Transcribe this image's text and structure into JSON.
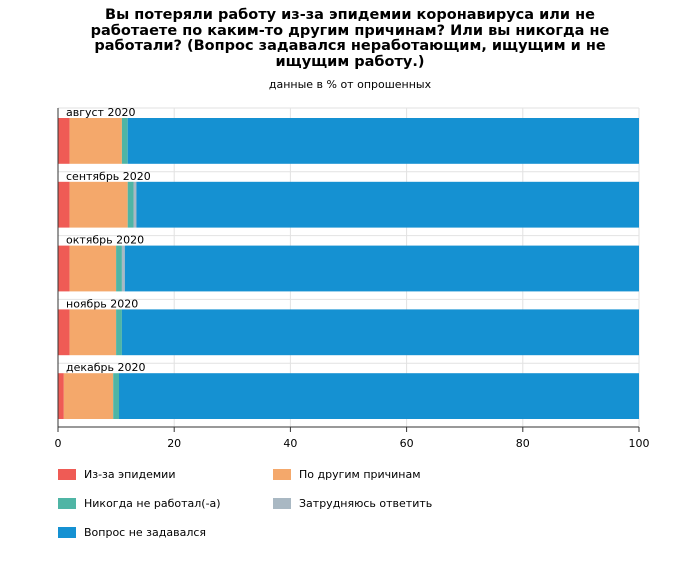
{
  "chart_data": {
    "type": "bar",
    "orientation": "horizontal",
    "stacked": true,
    "title": "Вы потеряли работу из-за эпидемии коронавируса или не работаете по каким-то другим причинам? Или вы никогда не работали? (Вопрос задавался неработающим, ищущим и не ищущим работу.)",
    "subtitle": "данные в % от опрошенных",
    "categories": [
      "август 2020",
      "сентябрь 2020",
      "октябрь 2020",
      "ноябрь 2020",
      "декабрь 2020"
    ],
    "series": [
      {
        "name": "Из-за эпидемии",
        "color": "#ef5b55",
        "values": [
          2,
          2,
          2,
          2,
          1
        ]
      },
      {
        "name": "По другим причинам",
        "color": "#f4a86b",
        "values": [
          9,
          10,
          8,
          8,
          8.5
        ]
      },
      {
        "name": "Никогда не работал(-а)",
        "color": "#4fb5a5",
        "values": [
          1,
          1,
          1,
          1,
          1
        ]
      },
      {
        "name": "Затрудняюсь ответить",
        "color": "#a9b8c3",
        "values": [
          0,
          0.5,
          0.5,
          0,
          0
        ]
      },
      {
        "name": "Вопрос не задавался",
        "color": "#1591d2",
        "values": [
          88,
          86.5,
          88.5,
          89,
          89.5
        ]
      }
    ],
    "xlim": [
      0,
      100
    ],
    "xticks": [
      0,
      20,
      40,
      60,
      80,
      100
    ],
    "grid": true,
    "legend_position": "bottom"
  }
}
